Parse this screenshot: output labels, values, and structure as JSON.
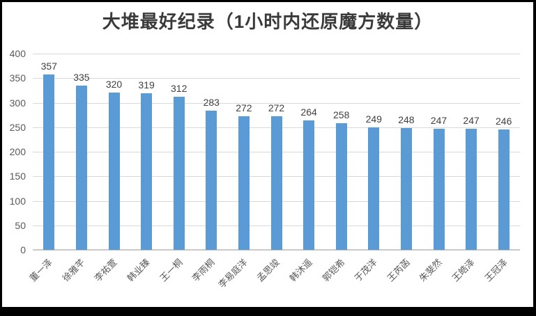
{
  "title": "大堆最好纪录（1小时内还原魔方数量）",
  "colors": {
    "bar": "#5b9bd5",
    "gridline": "#d9d9d9",
    "axis_line": "#c9c9c9",
    "title_text": "#3a3a3a",
    "tick_text": "#595959",
    "value_label_text": "#404040",
    "background": "#ffffff",
    "outer_border": "#000000"
  },
  "chart_data": {
    "type": "bar",
    "title": "大堆最好纪录（1小时内还原魔方数量）",
    "categories": [
      "董一泽",
      "徐雅芊",
      "李祐萱",
      "韩业臻",
      "王一桐",
      "李雨桐",
      "李易庭洋",
      "孟思竣",
      "韩沐遥",
      "郭铠希",
      "于茂洋",
      "王芮菡",
      "朱斐然",
      "王皓泽",
      "王冠泽"
    ],
    "values": [
      357,
      335,
      320,
      319,
      312,
      283,
      272,
      272,
      264,
      258,
      249,
      248,
      247,
      247,
      246
    ],
    "data_labels": [
      357,
      335,
      320,
      319,
      312,
      283,
      272,
      272,
      264,
      258,
      249,
      248,
      247,
      247,
      246
    ],
    "xlabel": "",
    "ylabel": "",
    "ylim": [
      0,
      400
    ],
    "yticks": [
      0,
      50,
      100,
      150,
      200,
      250,
      300,
      350,
      400
    ],
    "grid": true,
    "legend": false,
    "x_tick_rotation_deg": 45,
    "bar_color": "#5b9bd5"
  }
}
